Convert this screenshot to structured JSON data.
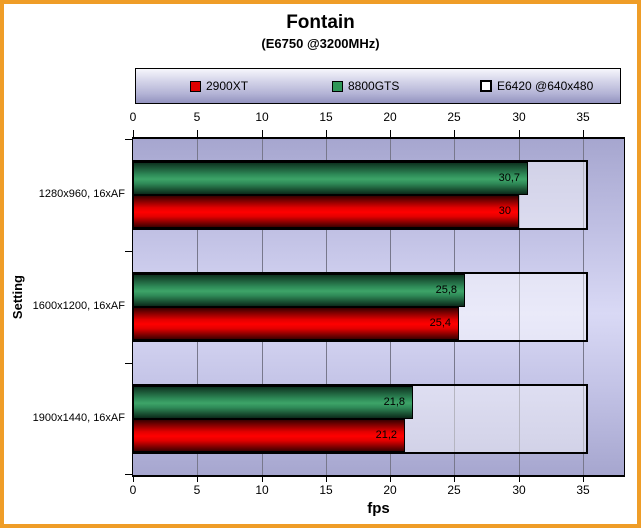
{
  "title": "Fontain",
  "subtitle": "(E6750 @3200MHz)",
  "legend": {
    "items": [
      {
        "label": "2900XT",
        "marker_color": "#dd0000"
      },
      {
        "label": "8800GTS",
        "marker_color": "#2e9658"
      },
      {
        "label": "E6420 @640x480",
        "marker_color": "#ffffff"
      }
    ]
  },
  "axes": {
    "xlabel": "fps",
    "ylabel": "Setting"
  },
  "colors": {
    "frame_border": "#ef9d27",
    "plot_background": "#bcbce2",
    "gridline": "#78788c",
    "bar_red": "#ff0000",
    "bar_green": "#339966",
    "bar_e6420_fill": "#d7d7f3"
  },
  "chart_data": {
    "type": "bar",
    "orientation": "horizontal",
    "title": "Fontain",
    "subtitle": "(E6750 @3200MHz)",
    "xlabel": "fps",
    "ylabel": "Setting",
    "xlim": [
      0,
      38.2
    ],
    "x_ticks": [
      0,
      5,
      10,
      15,
      20,
      25,
      30,
      35
    ],
    "grid": true,
    "legend_position": "top",
    "categories": [
      "1280x960, 16xAF",
      "1600x1200, 16xAF",
      "1900x1440, 16xAF"
    ],
    "series": [
      {
        "name": "2900XT",
        "values": [
          30,
          25.4,
          21.2
        ],
        "labels": [
          "30",
          "25,4",
          "21,2"
        ]
      },
      {
        "name": "8800GTS",
        "values": [
          30.7,
          25.8,
          21.8
        ],
        "labels": [
          "30,7",
          "25,8",
          "21,8"
        ]
      },
      {
        "name": "E6420 @640x480",
        "values": [
          35.4,
          35.4,
          35.4
        ],
        "labels": [
          "",
          "",
          ""
        ]
      }
    ]
  }
}
